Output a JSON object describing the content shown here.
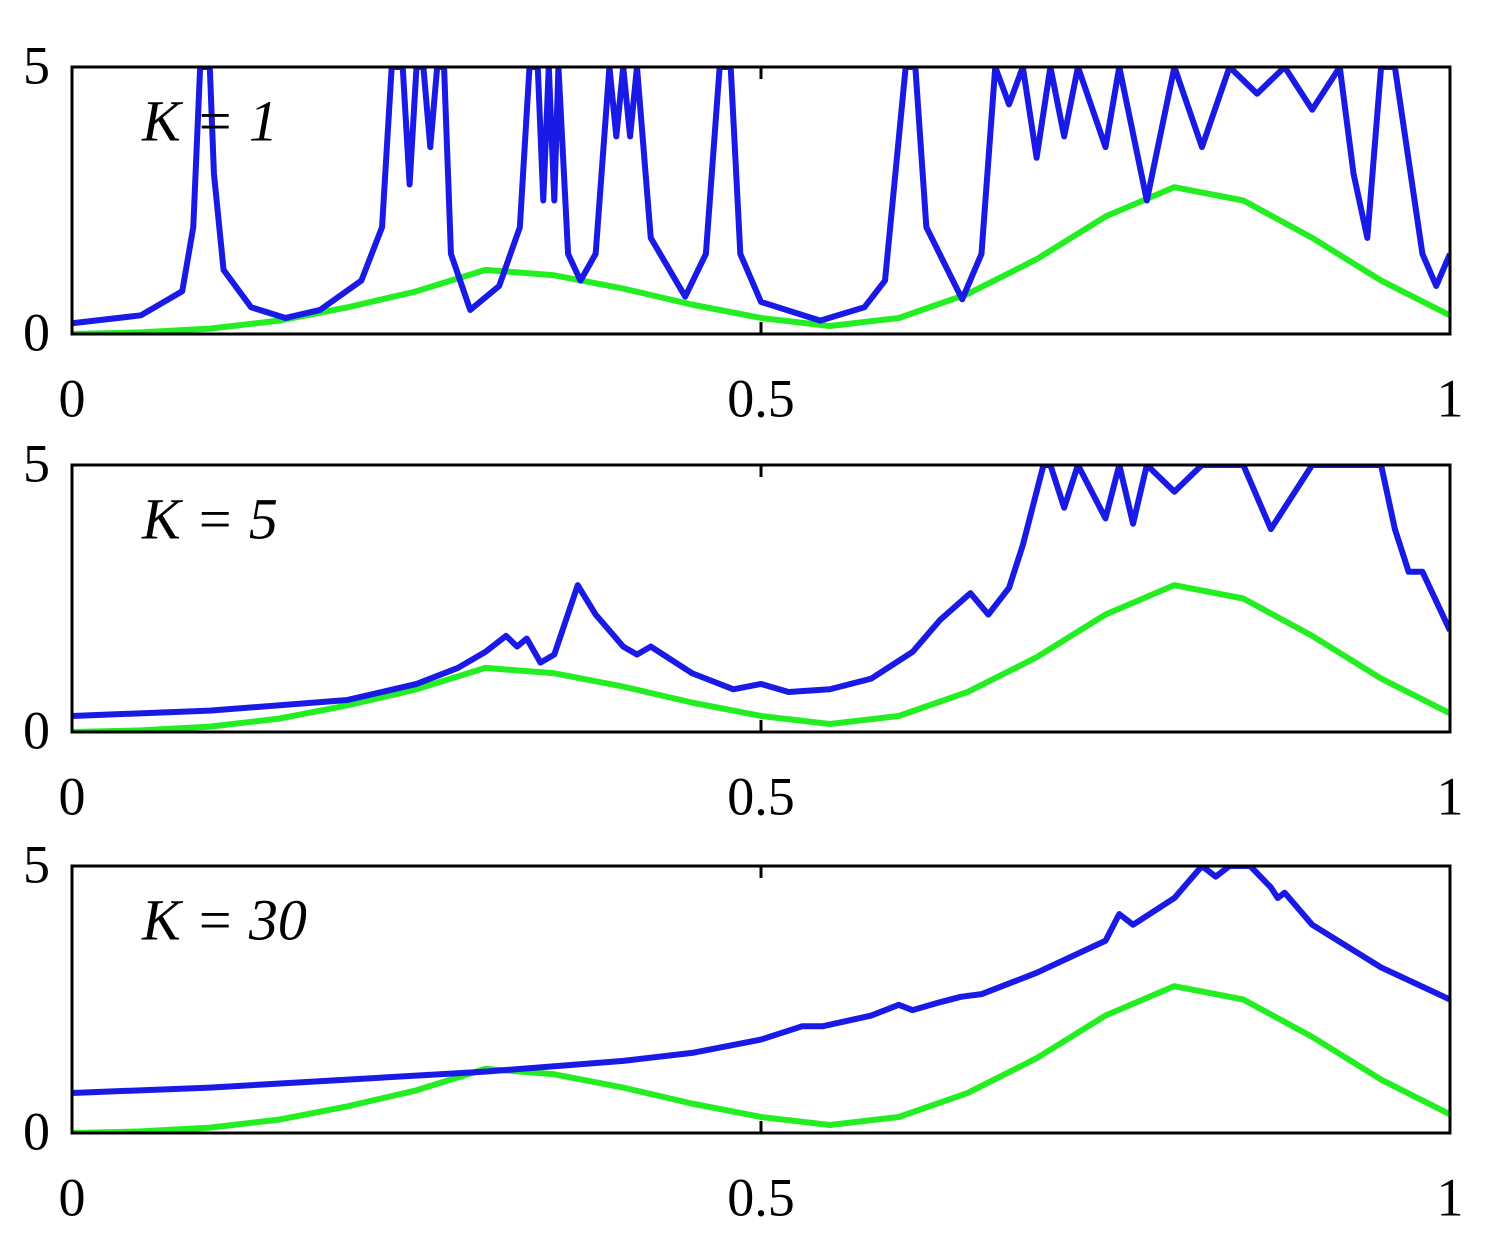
{
  "chart_data": [
    {
      "type": "line",
      "annotation": "K = 1",
      "xlim": [
        0,
        1
      ],
      "ylim": [
        0,
        5
      ],
      "xticks": [
        0,
        0.5,
        1
      ],
      "yticks": [
        0,
        5
      ],
      "series": [
        {
          "color": "#1a1ae6",
          "x": [
            0,
            0.05,
            0.08,
            0.088,
            0.093,
            0.1,
            0.103,
            0.11,
            0.13,
            0.155,
            0.18,
            0.21,
            0.225,
            0.232,
            0.24,
            0.245,
            0.25,
            0.255,
            0.26,
            0.265,
            0.27,
            0.275,
            0.289,
            0.31,
            0.325,
            0.332,
            0.338,
            0.342,
            0.346,
            0.35,
            0.353,
            0.36,
            0.369,
            0.38,
            0.39,
            0.395,
            0.4,
            0.405,
            0.41,
            0.42,
            0.445,
            0.46,
            0.47,
            0.478,
            0.485,
            0.5,
            0.543,
            0.575,
            0.59,
            0.605,
            0.612,
            0.62,
            0.646,
            0.66,
            0.67,
            0.68,
            0.69,
            0.7,
            0.71,
            0.72,
            0.73,
            0.75,
            0.76,
            0.78,
            0.8,
            0.82,
            0.84,
            0.86,
            0.88,
            0.9,
            0.92,
            0.93,
            0.94,
            0.95,
            0.96,
            0.98,
            0.99,
            1.0
          ],
          "values": [
            0.2,
            0.35,
            0.8,
            2,
            5,
            5,
            3,
            1.2,
            0.5,
            0.3,
            0.45,
            1,
            2,
            5,
            5,
            2.8,
            5,
            5,
            3.5,
            5,
            5,
            1.5,
            0.45,
            0.9,
            2,
            5,
            5,
            2.5,
            5,
            2.5,
            5,
            1.5,
            1.0,
            1.5,
            5,
            3.7,
            5,
            3.7,
            5,
            1.8,
            0.7,
            1.5,
            5,
            5,
            1.5,
            0.6,
            0.25,
            0.5,
            1,
            5,
            5,
            2,
            0.65,
            1.5,
            5,
            4.3,
            5,
            3.3,
            5,
            3.7,
            5,
            3.5,
            5,
            2.5,
            5,
            3.5,
            5,
            4.5,
            5,
            4.2,
            5,
            3,
            1.8,
            5,
            5,
            1.5,
            0.9,
            1.5
          ]
        },
        {
          "color": "#22ee22",
          "x": [
            0,
            0.05,
            0.1,
            0.15,
            0.2,
            0.25,
            0.3,
            0.35,
            0.4,
            0.45,
            0.5,
            0.55,
            0.6,
            0.65,
            0.7,
            0.75,
            0.8,
            0.85,
            0.9,
            0.95,
            1
          ],
          "values": [
            0,
            0.03,
            0.1,
            0.25,
            0.5,
            0.8,
            1.2,
            1.1,
            0.85,
            0.55,
            0.3,
            0.15,
            0.3,
            0.75,
            1.4,
            2.2,
            2.75,
            2.5,
            1.8,
            1.0,
            0.35
          ]
        }
      ]
    },
    {
      "type": "line",
      "annotation": "K = 5",
      "xlim": [
        0,
        1
      ],
      "ylim": [
        0,
        5
      ],
      "xticks": [
        0,
        0.5,
        1
      ],
      "yticks": [
        0,
        5
      ],
      "series": [
        {
          "color": "#1a1ae6",
          "x": [
            0,
            0.1,
            0.2,
            0.25,
            0.28,
            0.3,
            0.315,
            0.323,
            0.33,
            0.34,
            0.35,
            0.367,
            0.38,
            0.4,
            0.41,
            0.42,
            0.45,
            0.48,
            0.5,
            0.52,
            0.55,
            0.58,
            0.61,
            0.63,
            0.652,
            0.665,
            0.68,
            0.69,
            0.7,
            0.705,
            0.71,
            0.72,
            0.73,
            0.74,
            0.75,
            0.76,
            0.77,
            0.78,
            0.8,
            0.82,
            0.85,
            0.87,
            0.88,
            0.9,
            0.92,
            0.95,
            0.96,
            0.97,
            0.98,
            1.0
          ],
          "values": [
            0.3,
            0.4,
            0.6,
            0.9,
            1.2,
            1.5,
            1.8,
            1.6,
            1.75,
            1.3,
            1.45,
            2.75,
            2.2,
            1.6,
            1.45,
            1.6,
            1.1,
            0.8,
            0.9,
            0.75,
            0.8,
            1.0,
            1.5,
            2.1,
            2.6,
            2.2,
            2.7,
            3.5,
            4.5,
            5,
            5,
            4.2,
            5,
            4.5,
            4.0,
            5,
            3.9,
            5,
            4.5,
            5,
            5,
            3.8,
            4.2,
            5,
            5,
            5,
            3.8,
            3,
            3,
            1.9
          ]
        },
        {
          "color": "#22ee22",
          "x": [
            0,
            0.05,
            0.1,
            0.15,
            0.2,
            0.25,
            0.3,
            0.35,
            0.4,
            0.45,
            0.5,
            0.55,
            0.6,
            0.65,
            0.7,
            0.75,
            0.8,
            0.85,
            0.9,
            0.95,
            1
          ],
          "values": [
            0,
            0.03,
            0.1,
            0.25,
            0.5,
            0.8,
            1.2,
            1.1,
            0.85,
            0.55,
            0.3,
            0.15,
            0.3,
            0.75,
            1.4,
            2.2,
            2.75,
            2.5,
            1.8,
            1.0,
            0.35
          ]
        }
      ]
    },
    {
      "type": "line",
      "annotation": "K = 30",
      "xlim": [
        0,
        1
      ],
      "ylim": [
        0,
        5
      ],
      "xticks": [
        0,
        0.5,
        1
      ],
      "yticks": [
        0,
        5
      ],
      "series": [
        {
          "color": "#1a1ae6",
          "x": [
            0,
            0.1,
            0.2,
            0.3,
            0.4,
            0.45,
            0.5,
            0.53,
            0.545,
            0.58,
            0.6,
            0.61,
            0.63,
            0.645,
            0.66,
            0.7,
            0.75,
            0.76,
            0.77,
            0.8,
            0.82,
            0.83,
            0.84,
            0.855,
            0.87,
            0.875,
            0.88,
            0.9,
            0.95,
            1.0
          ],
          "values": [
            0.75,
            0.85,
            1.0,
            1.15,
            1.35,
            1.5,
            1.75,
            2.0,
            2.0,
            2.2,
            2.4,
            2.3,
            2.45,
            2.55,
            2.6,
            3.0,
            3.6,
            4.1,
            3.9,
            4.4,
            5,
            4.8,
            5,
            5,
            4.6,
            4.4,
            4.5,
            3.9,
            3.1,
            2.5
          ]
        },
        {
          "color": "#22ee22",
          "x": [
            0,
            0.05,
            0.1,
            0.15,
            0.2,
            0.25,
            0.3,
            0.35,
            0.4,
            0.45,
            0.5,
            0.55,
            0.6,
            0.65,
            0.7,
            0.75,
            0.8,
            0.85,
            0.9,
            0.95,
            1
          ],
          "values": [
            0,
            0.03,
            0.1,
            0.25,
            0.5,
            0.8,
            1.2,
            1.1,
            0.85,
            0.55,
            0.3,
            0.15,
            0.3,
            0.75,
            1.4,
            2.2,
            2.75,
            2.5,
            1.8,
            1.0,
            0.35
          ]
        }
      ]
    }
  ]
}
